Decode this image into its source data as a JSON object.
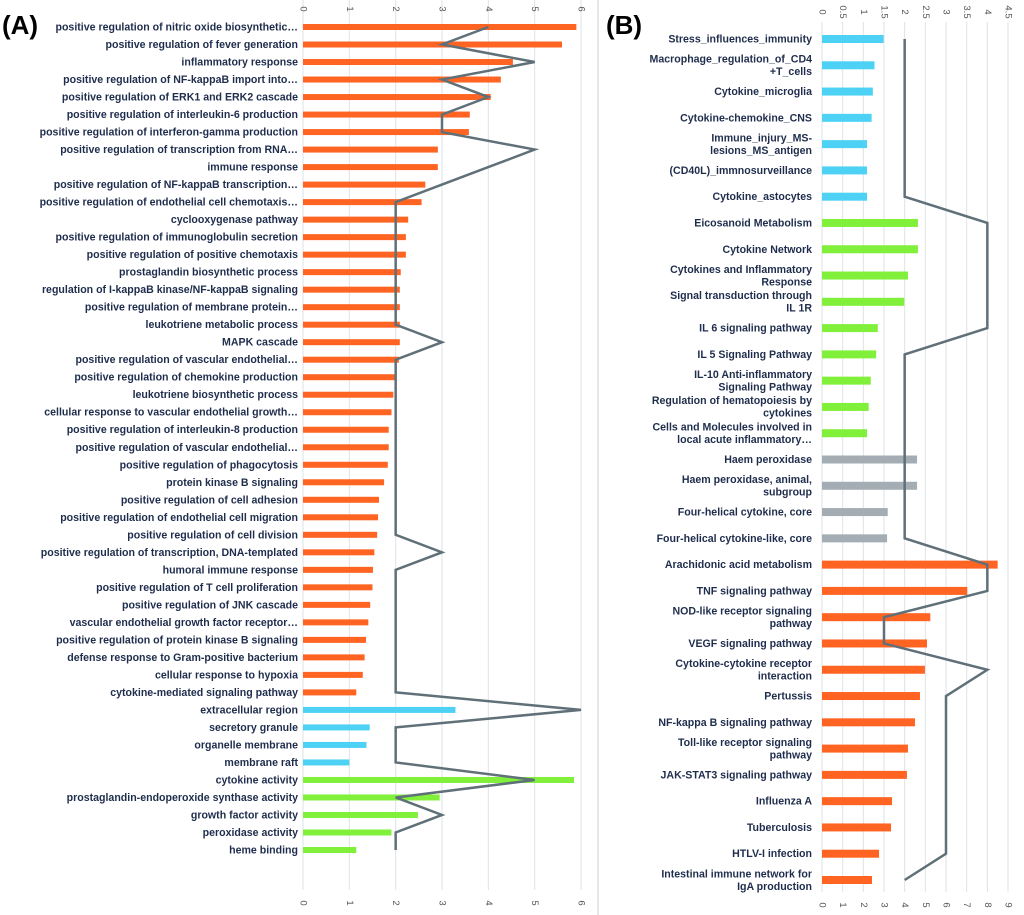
{
  "chart_data": [
    {
      "type": "bar",
      "orientation": "horizontal",
      "panel_label": "(A)",
      "xlim": [
        0,
        6
      ],
      "top_ticks": [
        "0",
        "1",
        "2",
        "3",
        "4",
        "5",
        "6"
      ],
      "bottom_ticks": [
        "0",
        "1",
        "2",
        "3",
        "4",
        "5",
        "6"
      ],
      "grid": true,
      "colors": {
        "orange": "#ff6422",
        "blue": "#4dd2f5",
        "green": "#80f03a",
        "line": "#607078"
      },
      "categories": [
        "positive regulation of nitric oxide biosynthetic…",
        "positive regulation of fever generation",
        "inflammatory response",
        "positive regulation of NF-kappaB import into…",
        "positive regulation of ERK1 and ERK2 cascade",
        "positive regulation of interleukin-6 production",
        "positive regulation of interferon-gamma production",
        "positive regulation of transcription from RNA…",
        "immune response",
        "positive regulation of NF-kappaB transcription…",
        "positive regulation of endothelial cell chemotaxis…",
        "cyclooxygenase pathway",
        "positive regulation of immunoglobulin secretion",
        "positive regulation of positive chemotaxis",
        "prostaglandin biosynthetic process",
        "regulation of I-kappaB kinase/NF-kappaB signaling",
        "positive regulation of membrane protein…",
        "leukotriene metabolic process",
        "MAPK cascade",
        "positive regulation of vascular endothelial…",
        "positive regulation of chemokine production",
        "leukotriene biosynthetic process",
        "cellular response to vascular endothelial growth…",
        "positive regulation of interleukin-8 production",
        "positive regulation of vascular endothelial…",
        "positive regulation of phagocytosis",
        "protein kinase B signaling",
        "positive regulation of cell adhesion",
        "positive regulation of endothelial cell migration",
        "positive regulation of cell division",
        "positive regulation of transcription, DNA-templated",
        "humoral immune response",
        "positive regulation of T cell proliferation",
        "positive regulation of JNK cascade",
        "vascular endothelial growth factor receptor…",
        "positive regulation of protein kinase B signaling",
        "defense response to Gram-positive bacterium",
        "cellular response to hypoxia",
        "cytokine-mediated signaling pathway",
        "extracellular region",
        "secretory granule",
        "organelle membrane",
        "membrane raft",
        "cytokine activity",
        "prostaglandin-endoperoxide synthase activity",
        "growth factor activity",
        "peroxidase activity",
        "heme binding"
      ],
      "values": [
        5.9,
        5.59,
        4.53,
        4.27,
        4.05,
        3.6,
        3.58,
        2.91,
        2.91,
        2.64,
        2.56,
        2.27,
        2.22,
        2.22,
        2.11,
        2.09,
        2.09,
        2.09,
        2.09,
        2.07,
        1.98,
        1.95,
        1.91,
        1.85,
        1.85,
        1.83,
        1.75,
        1.64,
        1.62,
        1.6,
        1.54,
        1.51,
        1.5,
        1.45,
        1.41,
        1.36,
        1.33,
        1.29,
        1.15,
        3.29,
        1.44,
        1.37,
        1.0,
        5.85,
        2.95,
        2.48,
        1.91,
        1.15
      ],
      "bar_colors": [
        "orange",
        "orange",
        "orange",
        "orange",
        "orange",
        "orange",
        "orange",
        "orange",
        "orange",
        "orange",
        "orange",
        "orange",
        "orange",
        "orange",
        "orange",
        "orange",
        "orange",
        "orange",
        "orange",
        "orange",
        "orange",
        "orange",
        "orange",
        "orange",
        "orange",
        "orange",
        "orange",
        "orange",
        "orange",
        "orange",
        "orange",
        "orange",
        "orange",
        "orange",
        "orange",
        "orange",
        "orange",
        "orange",
        "orange",
        "blue",
        "blue",
        "blue",
        "blue",
        "green",
        "green",
        "green",
        "green",
        "green"
      ],
      "line_values": [
        4,
        3,
        5,
        3,
        4,
        3,
        3,
        5,
        4,
        3,
        2,
        2,
        2,
        2,
        2,
        2,
        2,
        2,
        3,
        2,
        2,
        2,
        2,
        2,
        2,
        2,
        2,
        2,
        2,
        2,
        3,
        2,
        2,
        2,
        2,
        2,
        2,
        2,
        2,
        6,
        2,
        2,
        2,
        5,
        2,
        3,
        2,
        2
      ]
    },
    {
      "type": "bar",
      "orientation": "horizontal",
      "panel_label": "(B)",
      "top_xlim": [
        0,
        4.5
      ],
      "bottom_xlim": [
        0,
        9
      ],
      "top_ticks": [
        "0",
        "0.5",
        "1",
        "1.5",
        "2",
        "2.5",
        "3",
        "3.5",
        "4",
        "4.5"
      ],
      "bottom_ticks": [
        "0",
        "1",
        "2",
        "3",
        "4",
        "5",
        "6",
        "7",
        "8",
        "9"
      ],
      "grid": true,
      "colors": {
        "orange": "#ff6422",
        "blue": "#4dd2f5",
        "green": "#80f03a",
        "gray": "#a3adb3",
        "line": "#607078"
      },
      "categories": [
        "Stress_influences_immunity",
        "Macrophage_regulation_of_CD4\n+T_cells",
        "Cytokine_microglia",
        "Cytokine-chemokine_CNS",
        "Immune_injury_MS-\nlesions_MS_antigen",
        "(CD40L)_immnosurveillance",
        "Cytokine_astocytes",
        "Eicosanoid Metabolism",
        "Cytokine Network",
        "Cytokines and Inflammatory\nResponse",
        "Signal transduction through\nIL 1R",
        "IL 6 signaling pathway",
        "IL 5 Signaling Pathway",
        "IL-10 Anti-inflammatory\nSignaling Pathway",
        "Regulation of hematopoiesis by\ncytokines",
        "Cells and Molecules involved in\nlocal acute inflammatory…",
        "Haem peroxidase",
        "Haem peroxidase, animal,\nsubgroup",
        "Four-helical cytokine, core",
        "Four-helical cytokine-like, core",
        "Arachidonic acid metabolism",
        "TNF signaling pathway",
        "NOD-like receptor signaling\npathway",
        "VEGF signaling pathway",
        "Cytokine-cytokine receptor\ninteraction",
        "Pertussis",
        "NF-kappa B signaling pathway",
        "Toll-like receptor signaling\npathway",
        "JAK-STAT3 signaling pathway",
        "Influenza A",
        "Tuberculosis",
        "HTLV-I infection",
        "Intestinal immune network for\nIgA production"
      ],
      "values_bottom_axis_units": [
        2.98,
        2.54,
        2.46,
        2.4,
        2.18,
        2.18,
        2.18,
        4.64,
        4.64,
        4.16,
        3.98,
        2.7,
        2.62,
        2.36,
        2.26,
        2.18,
        4.6,
        4.6,
        3.18,
        3.15,
        8.5,
        7.03,
        5.24,
        5.08,
        4.98,
        4.74,
        4.5,
        4.16,
        4.11,
        3.39,
        3.34,
        2.76,
        2.42
      ],
      "bar_colors": [
        "blue",
        "blue",
        "blue",
        "blue",
        "blue",
        "blue",
        "blue",
        "green",
        "green",
        "green",
        "green",
        "green",
        "green",
        "green",
        "green",
        "green",
        "gray",
        "gray",
        "gray",
        "gray",
        "orange",
        "orange",
        "orange",
        "orange",
        "orange",
        "orange",
        "orange",
        "orange",
        "orange",
        "orange",
        "orange",
        "orange",
        "orange"
      ],
      "line_values_bottom_axis_units": [
        4,
        4,
        4,
        4,
        4,
        4,
        4,
        8,
        8,
        8,
        8,
        8,
        4,
        4,
        4,
        4,
        4,
        4,
        4,
        4,
        8,
        8,
        3,
        3,
        8,
        6,
        6,
        6,
        6,
        6,
        6,
        6,
        4
      ]
    }
  ]
}
